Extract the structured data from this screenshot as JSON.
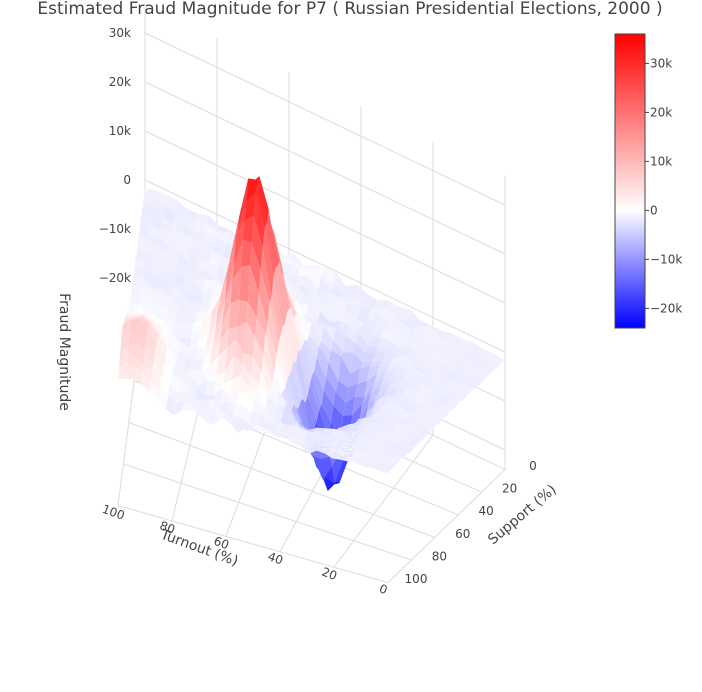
{
  "chart_data": {
    "type": "surface",
    "title": "Estimated Fraud Magnitude for P7 ( Russian Presidential Elections, 2000 )",
    "xaxis": {
      "label": "Turnout (%)",
      "ticks": [
        "0",
        "20",
        "40",
        "60",
        "80",
        "100"
      ],
      "range": [
        0,
        100
      ]
    },
    "yaxis": {
      "label": "Support (%)",
      "ticks": [
        "0",
        "20",
        "40",
        "60",
        "80",
        "100"
      ],
      "range": [
        0,
        100
      ]
    },
    "zaxis": {
      "label": "Fraud Magnitude",
      "ticks": [
        "−20k",
        "−10k",
        "0",
        "10k",
        "20k",
        "30k"
      ],
      "range": [
        -24000,
        36000
      ]
    },
    "colorbar": {
      "ticks": [
        "−20k",
        "−10k",
        "0",
        "10k",
        "20k",
        "30k"
      ],
      "range": [
        -24000,
        36000
      ],
      "colorscale": [
        "#0000ff",
        "#ffffff",
        "#ff0000"
      ]
    },
    "features": [
      {
        "turnout": 60,
        "support": 55,
        "peak": 35000
      },
      {
        "turnout": 35,
        "support": 55,
        "peak": -22000
      },
      {
        "turnout": 95,
        "support": 85,
        "peak": 9000
      }
    ]
  }
}
